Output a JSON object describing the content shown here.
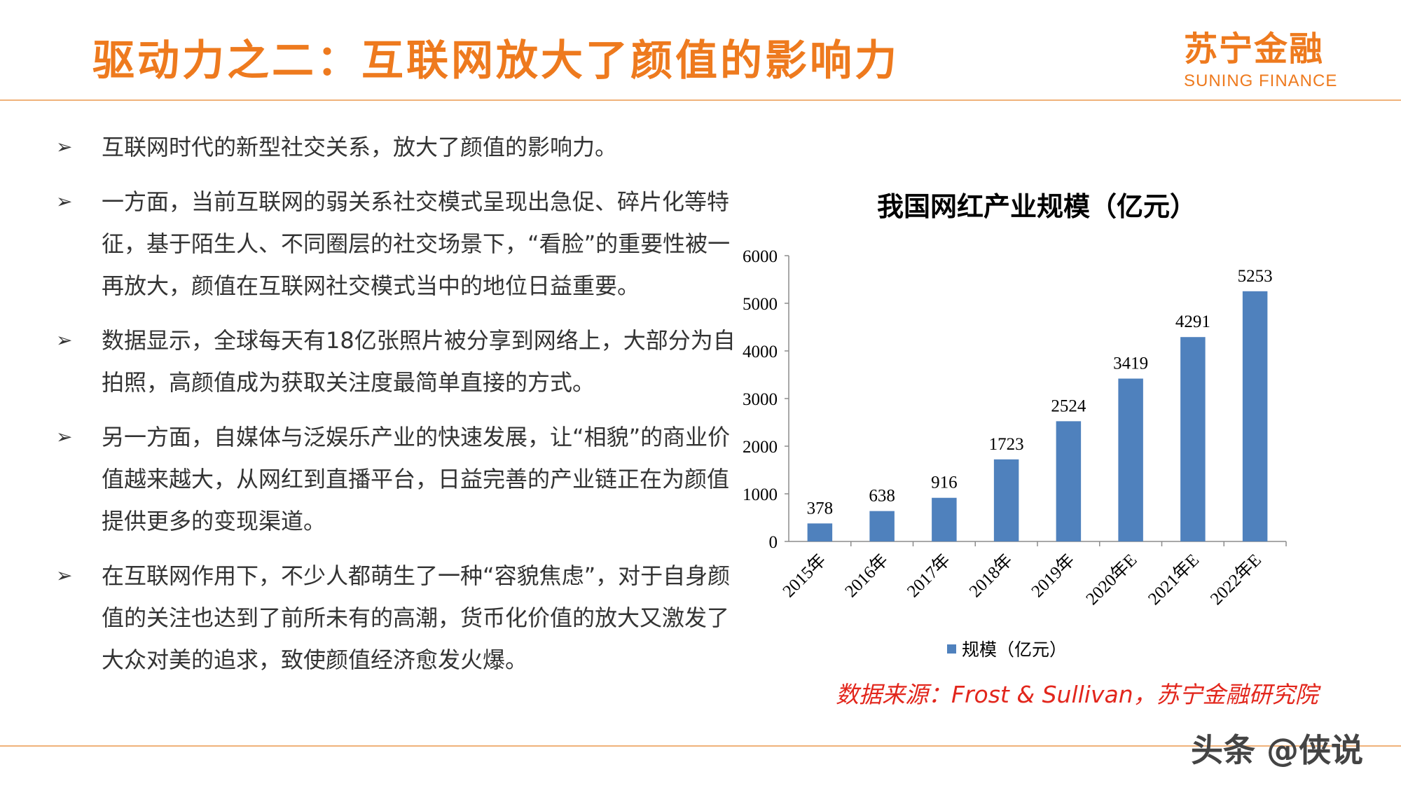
{
  "header": {
    "title": "驱动力之二：互联网放大了颜值的影响力",
    "logo_cn": "苏宁金融",
    "logo_en": "SUNING FINANCE"
  },
  "bullets": [
    {
      "text": "互联网时代的新型社交关系，放大了颜值的影响力。"
    },
    {
      "text": "一方面，当前互联网的弱关系社交模式呈现出急促、碎片化等特征，基于陌生人、不同圈层的社交场景下，“看脸”的重要性被一再放大，颜值在互联网社交模式当中的地位日益重要。"
    },
    {
      "text": "数据显示，全球每天有18亿张照片被分享到网络上，大部分为自拍照，高颜值成为获取关注度最简单直接的方式。"
    },
    {
      "text": "另一方面，自媒体与泛娱乐产业的快速发展，让“相貌”的商业价值越来越大，从网红到直播平台，日益完善的产业链正在为颜值提供更多的变现渠道。"
    },
    {
      "text": "在互联网作用下，不少人都萌生了一种“容貌焦虑”，对于自身颜值的关注也达到了前所未有的高潮，货币化价值的放大又激发了大众对美的追求，致使颜值经济愈发火爆。"
    }
  ],
  "chart_data": {
    "type": "bar",
    "title": "我国网红产业规模（亿元）",
    "categories": [
      "2015年",
      "2016年",
      "2017年",
      "2018年",
      "2019年",
      "2020年E",
      "2021年E",
      "2022年E"
    ],
    "series": [
      {
        "name": "规模（亿元）",
        "values": [
          378,
          638,
          916,
          1723,
          2524,
          3419,
          4291,
          5253
        ]
      }
    ],
    "yticks": [
      "0",
      "1000",
      "2000",
      "3000",
      "4000",
      "5000",
      "6000"
    ],
    "ylim": [
      0,
      6000
    ],
    "grid": false,
    "legend": "bottom",
    "bar_color": "#4f81bd"
  },
  "source": "数据来源：Frost & Sullivan，苏宁金融研究院",
  "watermark": "头条 @侠说"
}
